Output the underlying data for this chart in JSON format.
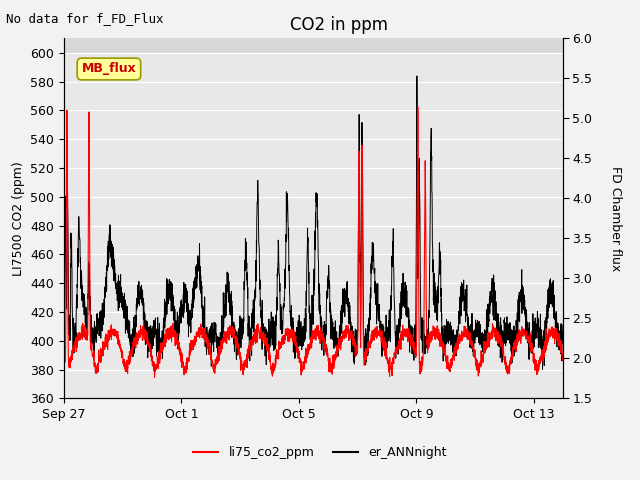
{
  "title": "CO2 in ppm",
  "top_left_text": "No data for f_FD_Flux",
  "ylabel_left": "LI7500 CO2 (ppm)",
  "ylabel_right": "FD Chamber flux",
  "ylim_left": [
    360,
    610
  ],
  "ylim_right": [
    1.5,
    6.0
  ],
  "yticks_left": [
    360,
    380,
    400,
    420,
    440,
    460,
    480,
    500,
    520,
    540,
    560,
    580,
    600
  ],
  "yticks_right": [
    1.5,
    2.0,
    2.5,
    3.0,
    3.5,
    4.0,
    4.5,
    5.0,
    5.5,
    6.0
  ],
  "xtick_positions": [
    0,
    4,
    8,
    12,
    16
  ],
  "xtick_labels": [
    "Sep 27",
    "Oct 1",
    "Oct 5",
    "Oct 9",
    "Oct 13"
  ],
  "legend_entries": [
    "li75_co2_ppm",
    "er_ANNnight"
  ],
  "line_color_red": "#ff0000",
  "line_color_black": "#000000",
  "fig_bg_color": "#f2f2f2",
  "plot_bg_color": "#e8e8e8",
  "plot_bg_top_color": "#d8d8d8",
  "grid_color": "#ffffff",
  "mb_flux_box_color": "#ffff99",
  "mb_flux_text_color": "#cc0000",
  "mb_flux_box_edge": "#999900",
  "title_fontsize": 12,
  "label_fontsize": 9,
  "tick_fontsize": 9,
  "note_fontsize": 9,
  "xlim": [
    0,
    17
  ],
  "n_points": 3000
}
